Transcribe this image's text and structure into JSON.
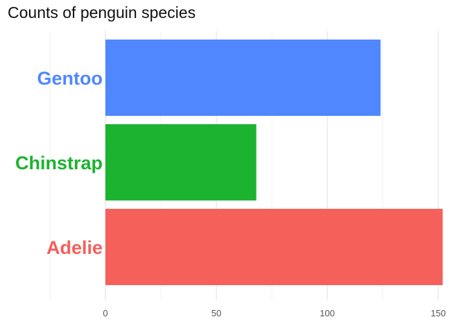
{
  "chart_data": {
    "type": "bar",
    "orientation": "horizontal",
    "title": "Counts of penguin species",
    "xlabel": "",
    "ylabel": "",
    "categories": [
      "Adelie",
      "Chinstrap",
      "Gentoo"
    ],
    "values": [
      152,
      68,
      124
    ],
    "colors": [
      "#f5605b",
      "#1cb330",
      "#5087ff"
    ],
    "xlim": [
      -25,
      157
    ],
    "xticks": [
      0,
      50,
      100,
      150
    ],
    "grid": true,
    "legend": "none"
  }
}
